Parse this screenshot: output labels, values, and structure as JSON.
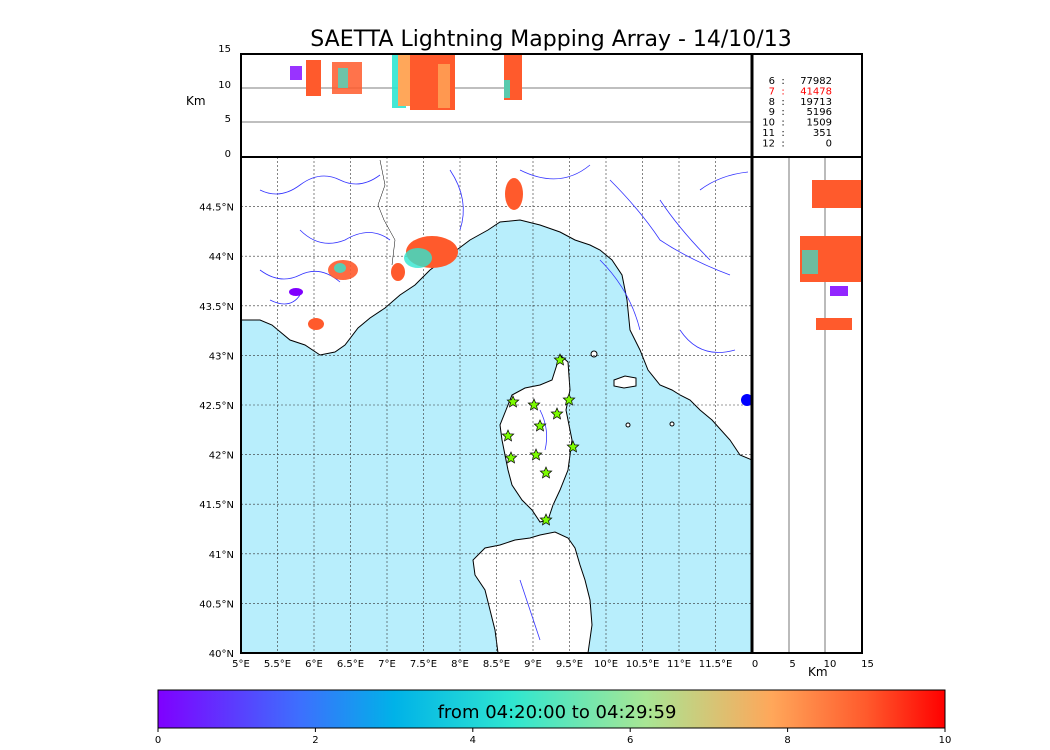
{
  "title": "SAETTA Lightning Mapping Array - 14/10/13",
  "alt_label": "Km",
  "km_label": "Km",
  "alt_ticks": [
    "15",
    "10",
    "5",
    "0"
  ],
  "km_ticks": [
    "0",
    "5",
    "10",
    "15"
  ],
  "lat_ticks": [
    "44.5°N",
    "44°N",
    "43.5°N",
    "43°N",
    "42.5°N",
    "42°N",
    "41.5°N",
    "41°N",
    "40.5°N",
    "40°N"
  ],
  "lon_ticks": [
    "5°E",
    "5.5°E",
    "6°E",
    "6.5°E",
    "7°E",
    "7.5°E",
    "8°E",
    "8.5°E",
    "9°E",
    "9.5°E",
    "10°E",
    "10.5°E",
    "11°E",
    "11.5°E"
  ],
  "station_stats": [
    {
      "stations": "6",
      "sep": ":",
      "count": "77982",
      "color": "#000000"
    },
    {
      "stations": "7",
      "sep": ":",
      "count": "41478",
      "color": "#ff0000"
    },
    {
      "stations": "8",
      "sep": ":",
      "count": "19713",
      "color": "#000000"
    },
    {
      "stations": "9",
      "sep": ":",
      "count": "5196",
      "color": "#000000"
    },
    {
      "stations": "10",
      "sep": ":",
      "count": "1509",
      "color": "#000000"
    },
    {
      "stations": "11",
      "sep": ":",
      "count": "351",
      "color": "#000000"
    },
    {
      "stations": "12",
      "sep": ":",
      "count": "0",
      "color": "#000000"
    }
  ],
  "colorbar": {
    "label": "from 04:20:00 to 04:29:59",
    "ticks": [
      "0",
      "2",
      "4",
      "6",
      "8",
      "10"
    ]
  },
  "colors": {
    "sea": "#b8eefc",
    "land": "#ffffff",
    "river": "#3333ff",
    "station": "#7cfc00"
  }
}
